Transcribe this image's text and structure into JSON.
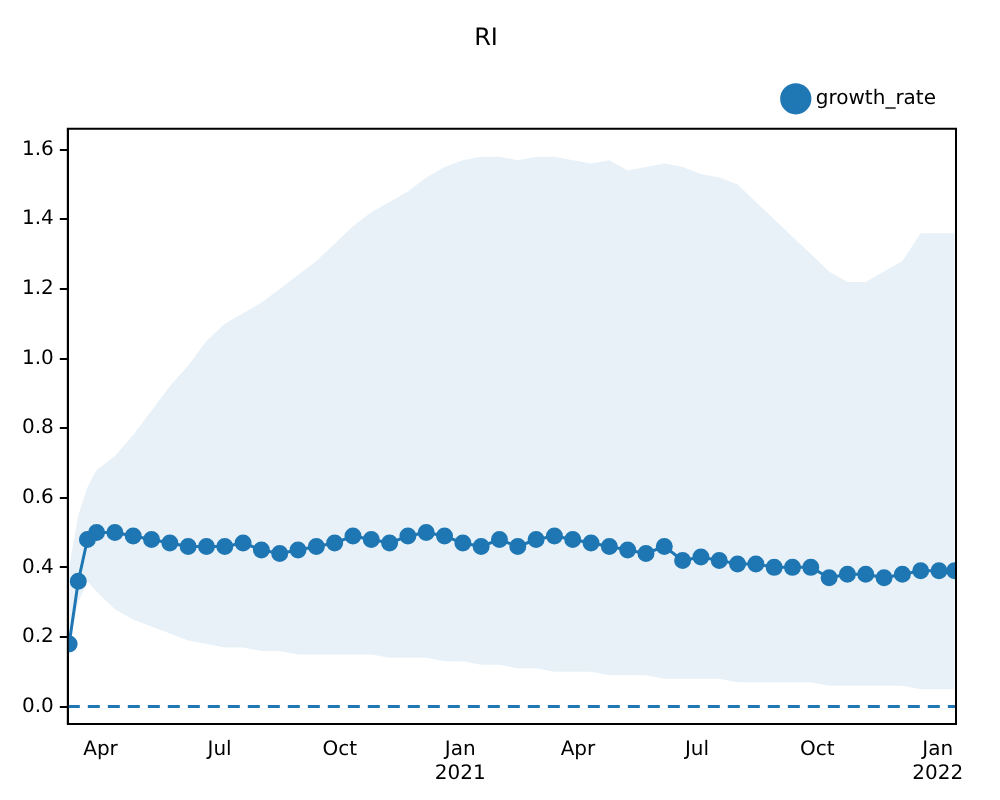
{
  "chart_data": {
    "type": "line",
    "title": "RI",
    "x": [
      "2020-03-08",
      "2020-03-15",
      "2020-03-22",
      "2020-03-29",
      "2020-04-12",
      "2020-04-26",
      "2020-05-10",
      "2020-05-24",
      "2020-06-07",
      "2020-06-21",
      "2020-07-05",
      "2020-07-19",
      "2020-08-02",
      "2020-08-16",
      "2020-08-30",
      "2020-09-13",
      "2020-09-27",
      "2020-10-11",
      "2020-10-25",
      "2020-11-08",
      "2020-11-22",
      "2020-12-06",
      "2020-12-20",
      "2021-01-03",
      "2021-01-17",
      "2021-01-31",
      "2021-02-14",
      "2021-02-28",
      "2021-03-14",
      "2021-03-28",
      "2021-04-11",
      "2021-04-25",
      "2021-05-09",
      "2021-05-23",
      "2021-06-06",
      "2021-06-20",
      "2021-07-04",
      "2021-07-18",
      "2021-08-01",
      "2021-08-15",
      "2021-08-29",
      "2021-09-12",
      "2021-09-26",
      "2021-10-10",
      "2021-10-24",
      "2021-11-07",
      "2021-11-21",
      "2021-12-05",
      "2021-12-19",
      "2022-01-02",
      "2022-01-14"
    ],
    "series": [
      {
        "name": "growth_rate",
        "color": "#1f77b4",
        "values": [
          0.18,
          0.36,
          0.48,
          0.5,
          0.5,
          0.49,
          0.48,
          0.47,
          0.46,
          0.46,
          0.46,
          0.47,
          0.45,
          0.44,
          0.45,
          0.46,
          0.47,
          0.49,
          0.48,
          0.47,
          0.49,
          0.5,
          0.49,
          0.47,
          0.46,
          0.48,
          0.46,
          0.48,
          0.49,
          0.48,
          0.47,
          0.46,
          0.45,
          0.44,
          0.46,
          0.42,
          0.43,
          0.42,
          0.41,
          0.41,
          0.4,
          0.4,
          0.4,
          0.37,
          0.38,
          0.38,
          0.37,
          0.38,
          0.39,
          0.39,
          0.39
        ],
        "lower": [
          0.18,
          0.3,
          0.36,
          0.33,
          0.28,
          0.25,
          0.23,
          0.21,
          0.19,
          0.18,
          0.17,
          0.17,
          0.16,
          0.16,
          0.15,
          0.15,
          0.15,
          0.15,
          0.15,
          0.14,
          0.14,
          0.14,
          0.13,
          0.13,
          0.12,
          0.12,
          0.11,
          0.11,
          0.1,
          0.1,
          0.1,
          0.09,
          0.09,
          0.09,
          0.08,
          0.08,
          0.08,
          0.08,
          0.07,
          0.07,
          0.07,
          0.07,
          0.07,
          0.06,
          0.06,
          0.06,
          0.06,
          0.06,
          0.05,
          0.05,
          0.05
        ],
        "upper": [
          0.4,
          0.55,
          0.63,
          0.68,
          0.72,
          0.78,
          0.85,
          0.92,
          0.98,
          1.05,
          1.1,
          1.13,
          1.16,
          1.2,
          1.24,
          1.28,
          1.33,
          1.38,
          1.42,
          1.45,
          1.48,
          1.52,
          1.55,
          1.57,
          1.58,
          1.58,
          1.57,
          1.58,
          1.58,
          1.57,
          1.56,
          1.57,
          1.54,
          1.55,
          1.56,
          1.55,
          1.53,
          1.52,
          1.5,
          1.45,
          1.4,
          1.35,
          1.3,
          1.25,
          1.22,
          1.22,
          1.25,
          1.28,
          1.36,
          1.36,
          1.36
        ]
      }
    ],
    "xlim": [
      "2020-03-07",
      "2022-01-15"
    ],
    "xticks": [
      {
        "value": "2020-04",
        "label": "Apr"
      },
      {
        "value": "2020-07",
        "label": "Jul"
      },
      {
        "value": "2020-10",
        "label": "Oct"
      },
      {
        "value": "2021-01",
        "label": "Jan\n2021"
      },
      {
        "value": "2021-04",
        "label": "Apr"
      },
      {
        "value": "2021-07",
        "label": "Jul"
      },
      {
        "value": "2021-10",
        "label": "Oct"
      },
      {
        "value": "2022-01",
        "label": "Jan\n2022"
      }
    ],
    "ylim": [
      -0.05,
      1.66
    ],
    "yticks": [
      {
        "value": 0,
        "label": "0.0"
      },
      {
        "value": 0.2,
        "label": "0.2"
      },
      {
        "value": 0.4,
        "label": "0.4"
      },
      {
        "value": 0.6,
        "label": "0.6"
      },
      {
        "value": 0.8,
        "label": "0.8"
      },
      {
        "value": 1,
        "label": "1.0"
      },
      {
        "value": 1.2,
        "label": "1.2"
      },
      {
        "value": 1.4,
        "label": "1.4"
      },
      {
        "value": 1.6,
        "label": "1.6"
      }
    ],
    "ref_lines": [
      {
        "axis": "y",
        "value": 0,
        "color": "#1f77b4",
        "line_style": "dashed"
      }
    ],
    "legend": "top right",
    "grid": false,
    "marker": "circle",
    "line_style": "solid"
  }
}
